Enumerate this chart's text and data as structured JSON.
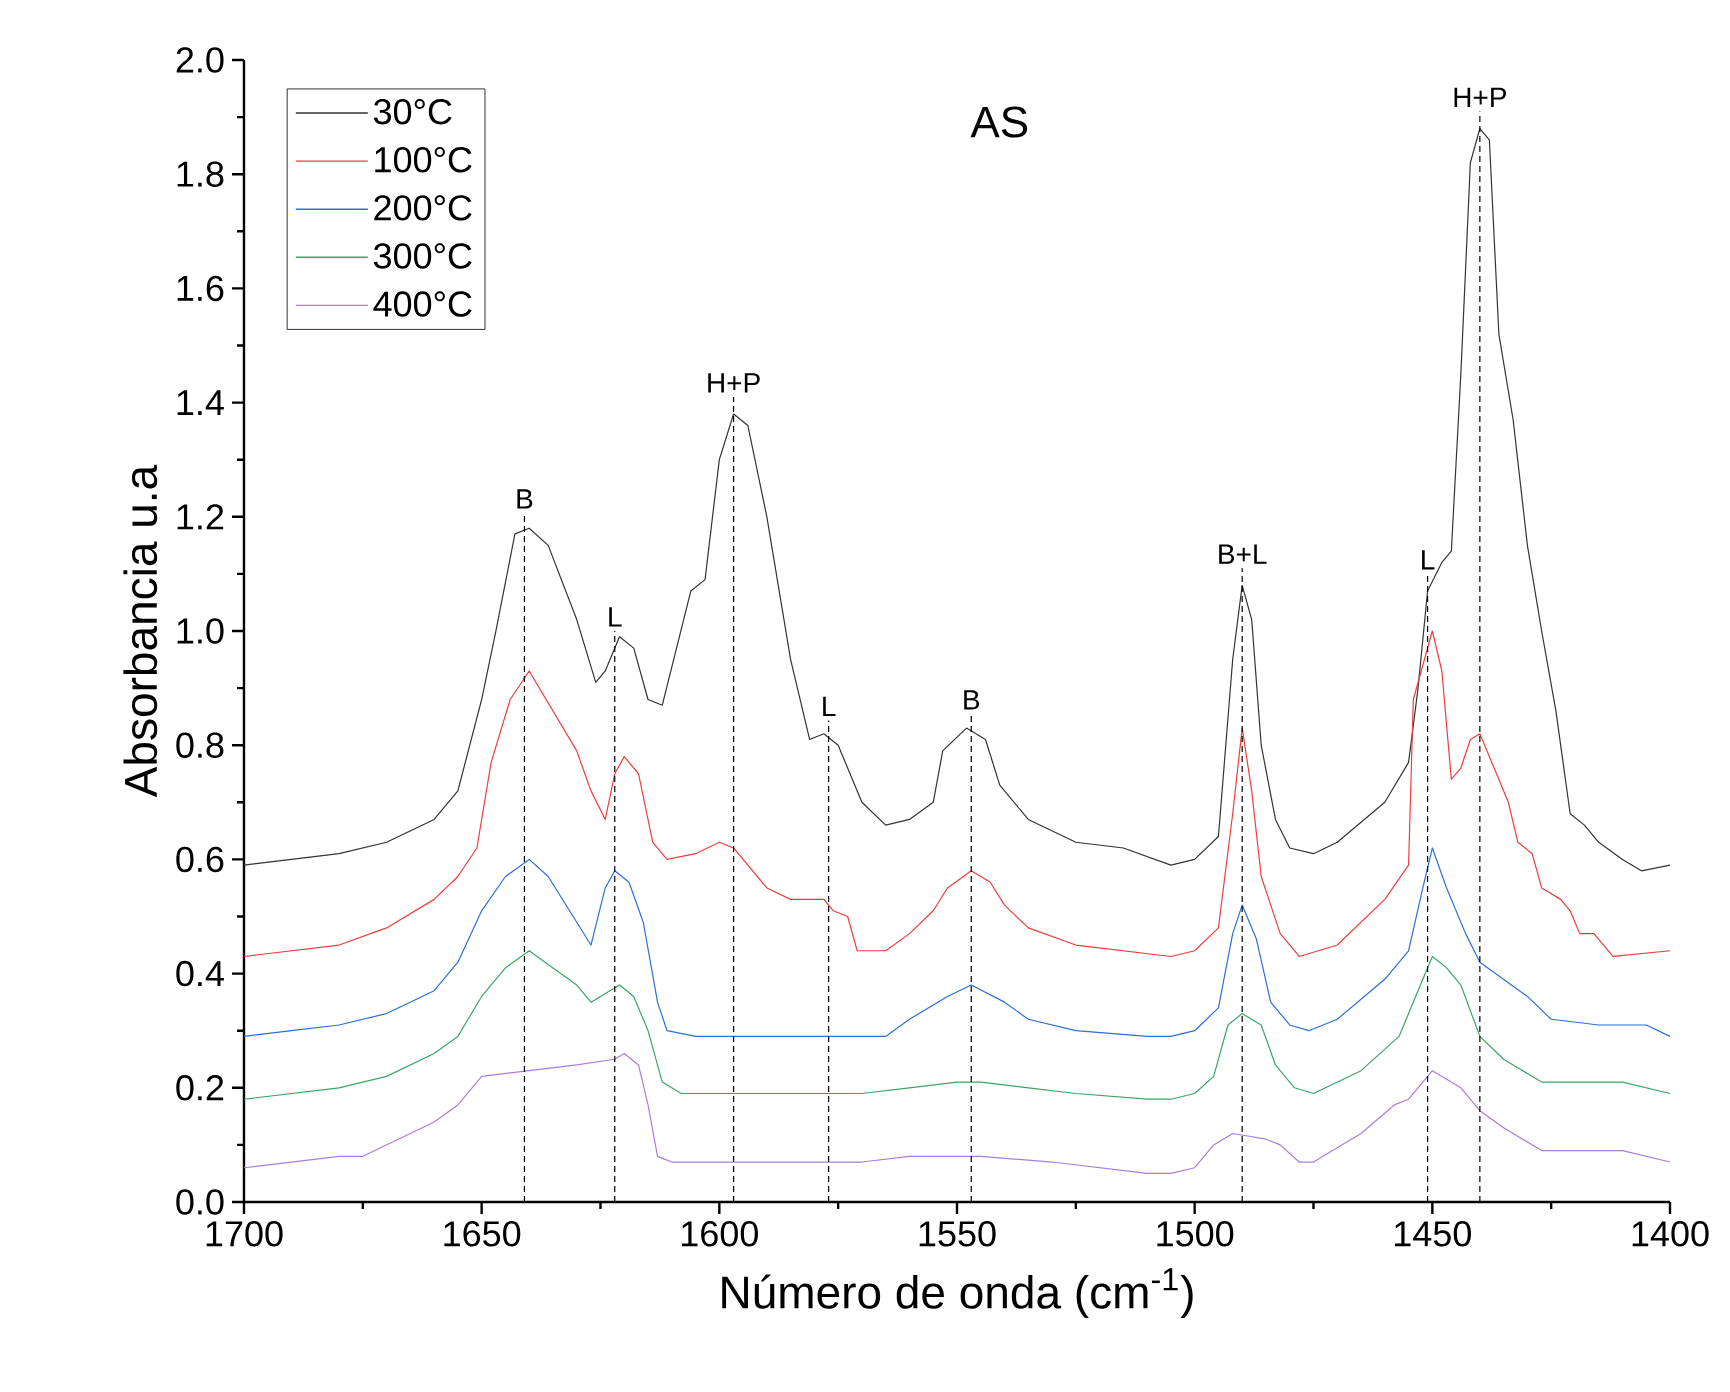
{
  "chart_data": {
    "type": "line",
    "title": "AS",
    "xlabel": "Número de onda (cm$^{-1}$)",
    "ylabel": "Absorbancia u.a",
    "xlim": [
      1700,
      1400
    ],
    "xticks": [
      1700,
      1650,
      1600,
      1550,
      1500,
      1450,
      1400
    ],
    "ylim": [
      0,
      2
    ],
    "yticks": [
      {
        "value": 0,
        "label": "0.0"
      },
      0.2,
      0.4,
      0.6,
      0.8,
      {
        "value": 1,
        "label": "1.0"
      },
      1.2,
      1.4,
      1.6,
      1.8,
      {
        "value": 2,
        "label": "2.0"
      }
    ],
    "legend": "top left",
    "series": [
      {
        "name": "30°C",
        "color": "#333333",
        "x": [
          1700,
          1690,
          1680,
          1670,
          1660,
          1655,
          1650,
          1647,
          1643,
          1640,
          1636,
          1630,
          1626,
          1624,
          1621,
          1618,
          1615,
          1612,
          1609,
          1606,
          1603,
          1600,
          1597,
          1594,
          1590,
          1585,
          1581,
          1578,
          1575,
          1570,
          1565,
          1560,
          1555,
          1553,
          1548,
          1544,
          1541,
          1535,
          1525,
          1515,
          1505,
          1500,
          1495,
          1492,
          1490,
          1488,
          1486,
          1483,
          1480,
          1475,
          1470,
          1460,
          1455,
          1453,
          1451,
          1448,
          1446,
          1444,
          1442,
          1440,
          1438,
          1436,
          1433,
          1430,
          1427,
          1424,
          1421,
          1418,
          1415,
          1410,
          1406,
          1400
        ],
        "values": [
          0.59,
          0.6,
          0.61,
          0.63,
          0.67,
          0.72,
          0.88,
          1.0,
          1.17,
          1.18,
          1.15,
          1.02,
          0.91,
          0.93,
          0.99,
          0.97,
          0.88,
          0.87,
          0.97,
          1.07,
          1.09,
          1.3,
          1.38,
          1.36,
          1.2,
          0.95,
          0.81,
          0.82,
          0.8,
          0.7,
          0.66,
          0.67,
          0.7,
          0.79,
          0.83,
          0.81,
          0.73,
          0.67,
          0.63,
          0.62,
          0.59,
          0.6,
          0.64,
          0.95,
          1.08,
          1.02,
          0.8,
          0.67,
          0.62,
          0.61,
          0.63,
          0.7,
          0.77,
          0.9,
          1.07,
          1.12,
          1.14,
          1.45,
          1.82,
          1.88,
          1.86,
          1.52,
          1.37,
          1.15,
          1.0,
          0.86,
          0.68,
          0.66,
          0.63,
          0.6,
          0.58,
          0.59
        ]
      },
      {
        "name": "100°C",
        "color": "#f03c3c",
        "x": [
          1700,
          1690,
          1680,
          1670,
          1660,
          1655,
          1651,
          1648,
          1644,
          1640,
          1635,
          1630,
          1627,
          1624,
          1622,
          1620,
          1617,
          1614,
          1611,
          1605,
          1600,
          1597,
          1590,
          1585,
          1580,
          1578,
          1576,
          1573,
          1571,
          1565,
          1560,
          1555,
          1552,
          1547,
          1543,
          1540,
          1535,
          1525,
          1515,
          1505,
          1500,
          1495,
          1492,
          1490,
          1488,
          1486,
          1482,
          1478,
          1470,
          1460,
          1455,
          1454,
          1450,
          1448,
          1446,
          1444,
          1442,
          1440,
          1437,
          1434,
          1432,
          1429,
          1427,
          1423,
          1421,
          1419,
          1416,
          1412,
          1400
        ],
        "values": [
          0.43,
          0.44,
          0.45,
          0.48,
          0.53,
          0.57,
          0.62,
          0.77,
          0.88,
          0.93,
          0.86,
          0.79,
          0.72,
          0.67,
          0.75,
          0.78,
          0.75,
          0.63,
          0.6,
          0.61,
          0.63,
          0.62,
          0.55,
          0.53,
          0.53,
          0.53,
          0.51,
          0.5,
          0.44,
          0.44,
          0.47,
          0.51,
          0.55,
          0.58,
          0.56,
          0.52,
          0.48,
          0.45,
          0.44,
          0.43,
          0.44,
          0.48,
          0.68,
          0.83,
          0.72,
          0.57,
          0.47,
          0.43,
          0.45,
          0.53,
          0.59,
          0.88,
          1.0,
          0.93,
          0.74,
          0.76,
          0.81,
          0.82,
          0.76,
          0.7,
          0.63,
          0.61,
          0.55,
          0.53,
          0.51,
          0.47,
          0.47,
          0.43,
          0.44
        ]
      },
      {
        "name": "200°C",
        "color": "#2a6fdb",
        "x": [
          1700,
          1690,
          1680,
          1670,
          1660,
          1655,
          1650,
          1645,
          1640,
          1636,
          1630,
          1627,
          1624,
          1622,
          1619,
          1616,
          1613,
          1611,
          1605,
          1580,
          1565,
          1560,
          1552,
          1547,
          1540,
          1535,
          1525,
          1510,
          1505,
          1500,
          1495,
          1492,
          1490,
          1487,
          1484,
          1480,
          1476,
          1470,
          1460,
          1455,
          1452,
          1450,
          1447,
          1443,
          1440,
          1430,
          1425,
          1415,
          1405,
          1400
        ],
        "values": [
          0.29,
          0.3,
          0.31,
          0.33,
          0.37,
          0.42,
          0.51,
          0.57,
          0.6,
          0.57,
          0.49,
          0.45,
          0.55,
          0.58,
          0.56,
          0.49,
          0.35,
          0.3,
          0.29,
          0.29,
          0.29,
          0.32,
          0.36,
          0.38,
          0.35,
          0.32,
          0.3,
          0.29,
          0.29,
          0.3,
          0.34,
          0.47,
          0.52,
          0.46,
          0.35,
          0.31,
          0.3,
          0.32,
          0.39,
          0.44,
          0.55,
          0.62,
          0.55,
          0.47,
          0.42,
          0.36,
          0.32,
          0.31,
          0.31,
          0.29
        ]
      },
      {
        "name": "300°C",
        "color": "#3aa665",
        "x": [
          1700,
          1690,
          1680,
          1670,
          1665,
          1660,
          1655,
          1650,
          1645,
          1640,
          1635,
          1630,
          1627,
          1621,
          1618,
          1615,
          1612,
          1608,
          1590,
          1570,
          1560,
          1550,
          1545,
          1535,
          1525,
          1510,
          1505,
          1500,
          1496,
          1493,
          1490,
          1486,
          1483,
          1479,
          1475,
          1465,
          1457,
          1455,
          1450,
          1447,
          1444,
          1440,
          1435,
          1427,
          1410,
          1400
        ],
        "values": [
          0.18,
          0.19,
          0.2,
          0.22,
          0.24,
          0.26,
          0.29,
          0.36,
          0.41,
          0.44,
          0.41,
          0.38,
          0.35,
          0.38,
          0.36,
          0.3,
          0.21,
          0.19,
          0.19,
          0.19,
          0.2,
          0.21,
          0.21,
          0.2,
          0.19,
          0.18,
          0.18,
          0.19,
          0.22,
          0.31,
          0.33,
          0.31,
          0.24,
          0.2,
          0.19,
          0.23,
          0.29,
          0.33,
          0.43,
          0.41,
          0.38,
          0.29,
          0.25,
          0.21,
          0.21,
          0.19
        ]
      },
      {
        "name": "400°C",
        "color": "#a77ee0",
        "x": [
          1700,
          1690,
          1680,
          1675,
          1670,
          1665,
          1660,
          1655,
          1650,
          1640,
          1630,
          1622,
          1620,
          1617,
          1615,
          1613,
          1610,
          1590,
          1570,
          1560,
          1545,
          1530,
          1510,
          1505,
          1500,
          1496,
          1492,
          1485,
          1482,
          1478,
          1475,
          1465,
          1458,
          1455,
          1450,
          1444,
          1440,
          1435,
          1427,
          1410,
          1400
        ],
        "values": [
          0.06,
          0.07,
          0.08,
          0.08,
          0.1,
          0.12,
          0.14,
          0.17,
          0.22,
          0.23,
          0.24,
          0.25,
          0.26,
          0.24,
          0.17,
          0.08,
          0.07,
          0.07,
          0.07,
          0.08,
          0.08,
          0.07,
          0.05,
          0.05,
          0.06,
          0.1,
          0.12,
          0.11,
          0.1,
          0.07,
          0.07,
          0.12,
          0.17,
          0.18,
          0.23,
          0.2,
          0.16,
          0.13,
          0.09,
          0.09,
          0.07
        ]
      }
    ],
    "ref_lines": [
      {
        "axis": "x",
        "value": 1641,
        "label": "B",
        "color": "#000000",
        "line_style": "dashed"
      },
      {
        "axis": "x",
        "value": 1622,
        "label": "L",
        "color": "#000000",
        "line_style": "dashed"
      },
      {
        "axis": "x",
        "value": 1597,
        "label": "H+P",
        "color": "#000000",
        "line_style": "dashed"
      },
      {
        "axis": "x",
        "value": 1577,
        "label": "L",
        "color": "#000000",
        "line_style": "dashed"
      },
      {
        "axis": "x",
        "value": 1547,
        "label": "B",
        "color": "#000000",
        "line_style": "dashed"
      },
      {
        "axis": "x",
        "value": 1490,
        "label": "B+L",
        "color": "#000000",
        "line_style": "dashed"
      },
      {
        "axis": "x",
        "value": 1451,
        "label": "L",
        "color": "#000000",
        "line_style": "dashed"
      },
      {
        "axis": "x",
        "value": 1440,
        "label": "H+P",
        "color": "#000000",
        "line_style": "dashed"
      }
    ]
  }
}
